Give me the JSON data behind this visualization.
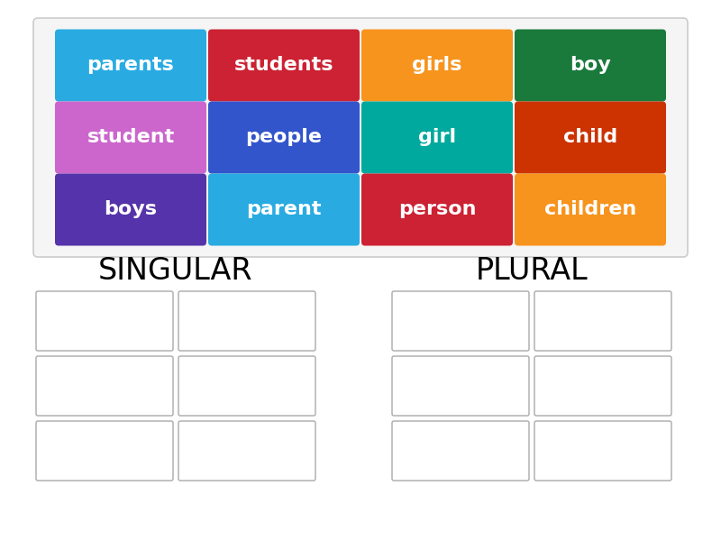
{
  "bg_color": "#ffffff",
  "card_outer_border": "#cccccc",
  "card_outer_bg": "#f5f5f5",
  "cards": [
    {
      "word": "parents",
      "color": "#29ABE2"
    },
    {
      "word": "students",
      "color": "#CC2233"
    },
    {
      "word": "girls",
      "color": "#F7941D"
    },
    {
      "word": "boy",
      "color": "#1A7A3C"
    },
    {
      "word": "student",
      "color": "#CC66CC"
    },
    {
      "word": "people",
      "color": "#3355CC"
    },
    {
      "word": "girl",
      "color": "#00A99D"
    },
    {
      "word": "child",
      "color": "#CC3300"
    },
    {
      "word": "boys",
      "color": "#5533AA"
    },
    {
      "word": "parent",
      "color": "#29ABE2"
    },
    {
      "word": "person",
      "color": "#CC2233"
    },
    {
      "word": "children",
      "color": "#F7941D"
    }
  ],
  "grid_rows": 3,
  "grid_cols": 4,
  "section_labels": [
    "SINGULAR",
    "PLURAL"
  ],
  "section_label_fontsize": 24,
  "card_fontsize": 16,
  "empty_box_border": "#aaaaaa",
  "empty_box_fill": "#ffffff"
}
